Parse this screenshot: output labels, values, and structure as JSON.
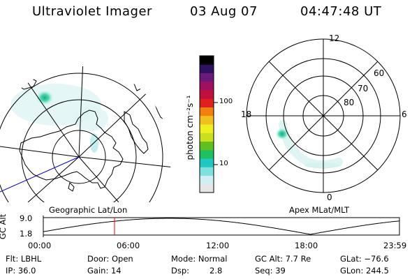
{
  "header": {
    "title": "Ultraviolet Imager",
    "date": "03 Aug 07",
    "time": "04:47:48 UT"
  },
  "colorbar": {
    "unit_label": "photon cm⁻²s⁻¹",
    "ticks": [
      "100",
      "10"
    ],
    "colors": [
      "#e6e6e6",
      "#cfeff4",
      "#7fe0e0",
      "#20c8c0",
      "#20c060",
      "#60c020",
      "#c8e020",
      "#f0f020",
      "#f0c020",
      "#f08010",
      "#e02020",
      "#c01040",
      "#a01060",
      "#6a1a7a",
      "#301060",
      "#000000"
    ]
  },
  "polar": {
    "mlt_labels": {
      "top": "12",
      "left": "18",
      "right": "6",
      "bottom": "0"
    },
    "lat_labels": [
      "60",
      "70",
      "80"
    ]
  },
  "panels": {
    "left_label": "Geographic Lat/Lon",
    "right_label": "Apex MLat/MLT"
  },
  "altitude_plot": {
    "ylabel": "GC Alt",
    "yticks": [
      "9.0",
      "1.8"
    ],
    "xticks": [
      "00:00",
      "06:00",
      "12:00",
      "18:00",
      "23:59"
    ],
    "current_marker_hours": 4.8
  },
  "info": {
    "filter": "Flt: LBHL",
    "ip": "IP: 36.0",
    "door": "Door: Open",
    "gain": "Gain: 14",
    "mode": "Mode: Normal",
    "dsp_label": "Dsp:",
    "dsp_value": "2.8",
    "gc_alt": "GC Alt: 7.7 Re",
    "seq": "Seq: 39",
    "glat": "GLat: −76.6",
    "glon": "GLon: 244.5"
  },
  "style": {
    "aurora_color": "#22c79a",
    "marker_color": "#ff0000",
    "line_color": "#0000cc"
  }
}
